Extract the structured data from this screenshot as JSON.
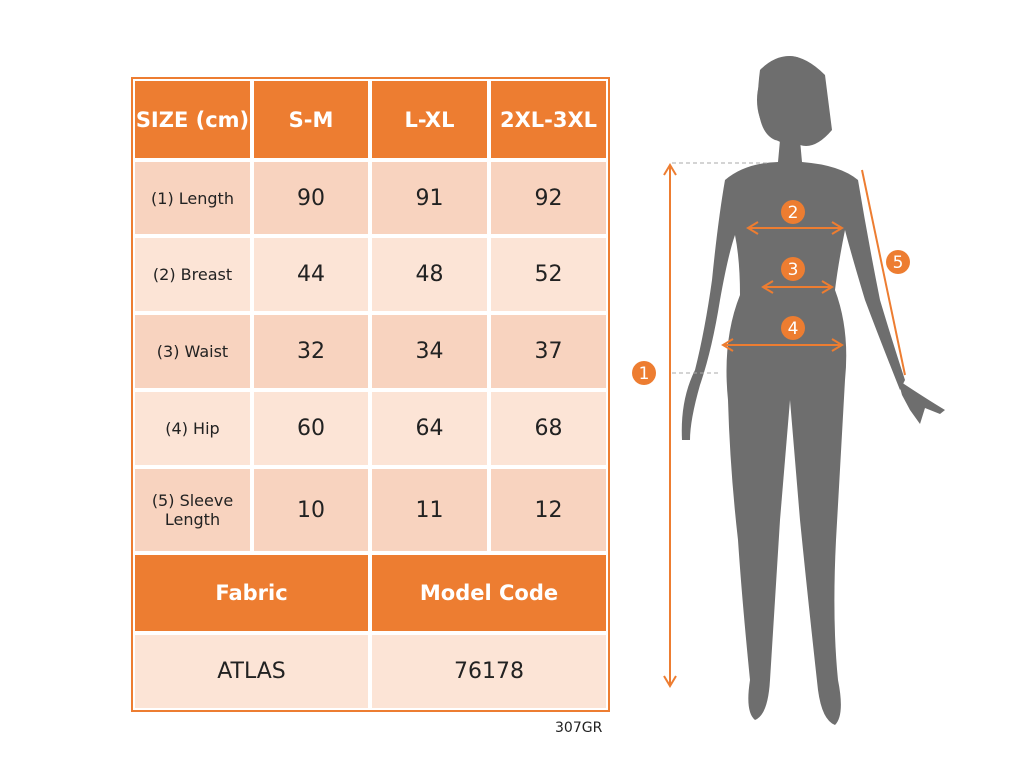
{
  "table": {
    "header": [
      "SIZE (cm)",
      "S-M",
      "L-XL",
      "2XL-3XL"
    ],
    "rows": [
      [
        "(1) Length",
        90,
        91,
        92
      ],
      [
        "(2) Breast",
        44,
        48,
        52
      ],
      [
        "(3) Waist",
        32,
        34,
        37
      ],
      [
        "(4) Hip",
        60,
        64,
        68
      ],
      [
        "(5) Sleeve Length",
        10,
        11,
        12
      ]
    ],
    "footer_header": [
      "Fabric",
      "Model Code"
    ],
    "footer_row": [
      "ATLAS",
      76178
    ]
  },
  "figure": {
    "markers": [
      "1",
      "2",
      "3",
      "4",
      "5"
    ]
  },
  "code": "307GR"
}
